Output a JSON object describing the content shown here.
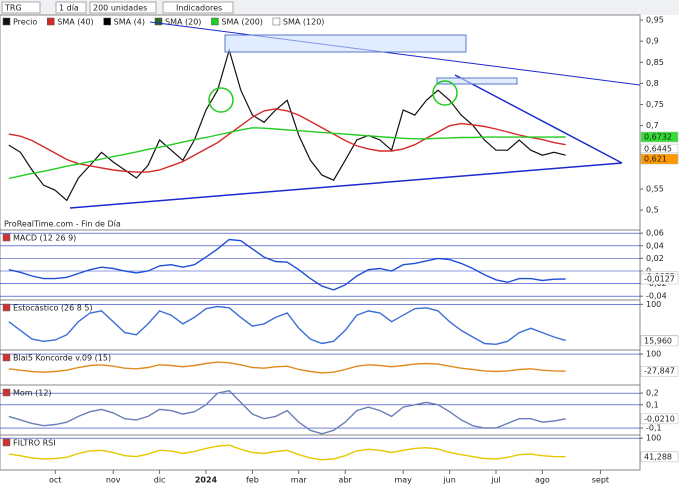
{
  "toolbar": {
    "symbol": "TRG",
    "period": "1 día",
    "units": "200 unidades",
    "menu": "Indicadores"
  },
  "chart_data": [
    {
      "type": "line",
      "annotation": "ProRealTime.com - Fin de Día",
      "categories": [
        null,
        null,
        null,
        null,
        "oct",
        null,
        null,
        null,
        null,
        "nov",
        null,
        null,
        null,
        "dic",
        null,
        null,
        null,
        "2024",
        null,
        null,
        null,
        "feb",
        null,
        null,
        null,
        "mar",
        null,
        null,
        null,
        "abr",
        null,
        null,
        null,
        null,
        "may",
        null,
        null,
        null,
        "jun",
        null,
        null,
        null,
        "jul",
        null,
        null,
        null,
        "ago",
        null,
        null,
        null,
        null,
        "sept",
        null,
        null,
        null
      ],
      "series": [
        {
          "name": "Precio",
          "color": "#111111",
          "values": [
            0.654,
            0.637,
            0.595,
            0.559,
            0.547,
            0.523,
            0.576,
            0.606,
            0.637,
            0.614,
            0.595,
            0.576,
            0.606,
            0.666,
            0.642,
            0.618,
            0.666,
            0.737,
            0.784,
            0.879,
            0.784,
            0.725,
            0.708,
            0.737,
            0.76,
            0.677,
            0.618,
            0.583,
            0.571,
            0.618,
            0.666,
            0.677,
            0.666,
            0.642,
            0.737,
            0.725,
            0.76,
            0.784,
            0.76,
            0.725,
            0.701,
            0.666,
            0.642,
            0.642,
            0.666,
            0.642,
            0.63,
            0.637,
            0.63,
            null,
            null,
            null,
            null,
            null,
            null
          ]
        },
        {
          "name": "SMA (40)",
          "color": "#d42a2a",
          "values": [
            0.68,
            0.675,
            0.665,
            0.65,
            0.635,
            0.62,
            0.61,
            0.605,
            0.6,
            0.595,
            0.592,
            0.59,
            0.59,
            0.595,
            0.605,
            0.615,
            0.63,
            0.645,
            0.66,
            0.68,
            0.7,
            0.72,
            0.735,
            0.74,
            0.735,
            0.725,
            0.71,
            0.695,
            0.68,
            0.665,
            0.652,
            0.645,
            0.64,
            0.64,
            0.645,
            0.655,
            0.67,
            0.685,
            0.7,
            0.705,
            0.702,
            0.698,
            0.692,
            0.685,
            0.678,
            0.672,
            0.667,
            0.66,
            0.655,
            null,
            null,
            null,
            null,
            null,
            null
          ]
        },
        {
          "name": "SMA (200)",
          "color": "#22cc22",
          "values": [
            0.575,
            0.581,
            0.587,
            0.592,
            0.598,
            0.604,
            0.609,
            0.615,
            0.621,
            0.627,
            0.632,
            0.638,
            0.644,
            0.649,
            0.655,
            0.661,
            0.667,
            0.672,
            0.678,
            0.684,
            0.69,
            0.695,
            0.694,
            0.692,
            0.69,
            0.688,
            0.686,
            0.684,
            0.682,
            0.68,
            0.678,
            0.676,
            0.674,
            0.672,
            0.67,
            0.669,
            0.669,
            0.67,
            0.671,
            0.672,
            0.672,
            0.673,
            0.673,
            0.673,
            0.673,
            0.673,
            0.673,
            0.673,
            0.6732,
            null,
            null,
            null,
            null,
            null,
            null
          ]
        }
      ],
      "legend_extra": [
        {
          "name": "SMA (4)",
          "color": "#000000"
        },
        {
          "name": "SMA (20)",
          "color": "#2e6b1a"
        },
        {
          "name": "SMA (120)",
          "color": "#ffffff"
        }
      ],
      "ylim": [
        0.453,
        0.962
      ],
      "yticks": [
        {
          "value": 0.95,
          "label": "0,95"
        },
        {
          "value": 0.9,
          "label": "0,9"
        },
        {
          "value": 0.85,
          "label": "0,85"
        },
        {
          "value": 0.8,
          "label": "0,8"
        },
        {
          "value": 0.75,
          "label": "0,75"
        },
        {
          "value": 0.7,
          "label": "0,7"
        },
        {
          "value": 0.55,
          "label": "0,55"
        },
        {
          "value": 0.5,
          "label": "0,5"
        }
      ],
      "tags": [
        {
          "value": 0.6732,
          "label": "0,6732",
          "color": "#000000",
          "background": "#33dd33"
        },
        {
          "value": 0.6445,
          "label": "0,6445",
          "color": "#000000",
          "background": "#ffffff"
        },
        {
          "value": 0.6252,
          "label": "0,6252",
          "color": "#000000",
          "background": "#ffffff"
        },
        {
          "value": 0.621,
          "label": "0,621",
          "color": "#000000",
          "background": "#ff9900"
        }
      ]
    },
    {
      "type": "line",
      "title": "MACD (12 26 9)",
      "ylim": [
        -0.046,
        0.065
      ],
      "yticks": [
        {
          "value": 0.06,
          "label": "0,06"
        },
        {
          "value": 0.04,
          "label": "0,04"
        },
        {
          "value": 0.02,
          "label": "0,02"
        },
        0,
        {
          "value": -0.02,
          "label": "-0,02"
        },
        {
          "value": -0.04,
          "label": "-0,04"
        }
      ],
      "series": [
        {
          "name": "MACD",
          "color": "#1f4fd6",
          "values": [
            0.002,
            -0.002,
            -0.008,
            -0.012,
            -0.012,
            -0.01,
            -0.004,
            0.002,
            0.006,
            0.004,
            0.0,
            -0.003,
            0.0,
            0.008,
            0.01,
            0.006,
            0.01,
            0.022,
            0.035,
            0.05,
            0.048,
            0.035,
            0.022,
            0.015,
            0.014,
            0.002,
            -0.012,
            -0.024,
            -0.03,
            -0.022,
            -0.008,
            0.002,
            0.004,
            0.0,
            0.01,
            0.012,
            0.016,
            0.02,
            0.018,
            0.012,
            0.004,
            -0.006,
            -0.014,
            -0.018,
            -0.012,
            -0.012,
            -0.015,
            -0.013,
            -0.0127,
            null,
            null,
            null,
            null,
            null,
            null
          ]
        }
      ],
      "tags": [
        {
          "value": -0.0085,
          "label": "-0,0085",
          "color": "#d42a2a",
          "background": "#ffffff"
        },
        {
          "value": -0.0127,
          "label": "-0,0127",
          "color": "#1f4fd6",
          "background": "#ffffff"
        }
      ]
    },
    {
      "type": "line",
      "title": "Estocástico (26 8 5)",
      "ylim": [
        -5,
        110
      ],
      "yticks": [
        100
      ],
      "series": [
        {
          "name": "%K",
          "color": "#3a6fd8",
          "values": [
            60,
            40,
            20,
            15,
            18,
            30,
            60,
            80,
            85,
            60,
            35,
            30,
            55,
            85,
            75,
            55,
            70,
            90,
            95,
            92,
            70,
            50,
            55,
            70,
            80,
            45,
            20,
            10,
            15,
            40,
            75,
            85,
            80,
            60,
            75,
            90,
            92,
            85,
            60,
            40,
            25,
            10,
            8,
            15,
            35,
            45,
            35,
            25,
            17.14,
            null,
            null,
            null,
            null,
            null,
            null
          ]
        }
      ],
      "tags": [
        {
          "value": 17.14,
          "label": "17,140",
          "color": "#d42a2a",
          "background": "#ffffff"
        },
        {
          "value": 15.96,
          "label": "15,960",
          "color": "#1f4fd6",
          "background": "#ffffff"
        }
      ]
    },
    {
      "type": "line",
      "title": "Blai5 Koncorde v.09 (15)",
      "ylim": [
        -130,
        130
      ],
      "yticks": [
        100
      ],
      "series": [
        {
          "name": "Koncorde",
          "color": "#e08a20",
          "values": [
            -10,
            -20,
            -30,
            -35,
            -30,
            -20,
            0,
            15,
            20,
            10,
            -5,
            -10,
            0,
            20,
            15,
            5,
            15,
            30,
            40,
            35,
            20,
            0,
            -5,
            5,
            10,
            -15,
            -30,
            -40,
            -35,
            -15,
            10,
            20,
            15,
            5,
            15,
            25,
            30,
            25,
            10,
            -5,
            -15,
            -25,
            -30,
            -25,
            -15,
            -10,
            -20,
            -25,
            -27.847,
            null,
            null,
            null,
            null,
            null,
            null
          ]
        }
      ],
      "tags": [
        {
          "value": -27.847,
          "label": "-27,847",
          "color": "#1f4fd6",
          "background": "#ffffff"
        }
      ]
    },
    {
      "type": "line",
      "title": "Mom (12)",
      "ylim": [
        -0.16,
        0.27
      ],
      "yticks": [
        {
          "value": 0.2,
          "label": "0,2"
        },
        {
          "value": 0.1,
          "label": "0,1"
        },
        {
          "value": -0.1,
          "label": "-0,1"
        }
      ],
      "series": [
        {
          "name": "Mom",
          "color": "#6b7fb8",
          "values": [
            0.0,
            -0.03,
            -0.06,
            -0.08,
            -0.07,
            -0.05,
            0.0,
            0.04,
            0.06,
            0.03,
            -0.02,
            -0.03,
            0.0,
            0.06,
            0.05,
            0.02,
            0.04,
            0.1,
            0.2,
            0.22,
            0.12,
            0.02,
            -0.02,
            0.0,
            0.05,
            -0.05,
            -0.12,
            -0.15,
            -0.12,
            -0.05,
            0.05,
            0.08,
            0.05,
            0.0,
            0.08,
            0.1,
            0.12,
            0.1,
            0.04,
            -0.03,
            -0.08,
            -0.1,
            -0.1,
            -0.06,
            -0.02,
            -0.02,
            -0.05,
            -0.04,
            -0.021,
            null,
            null,
            null,
            null,
            null,
            null
          ]
        }
      ],
      "tags": [
        {
          "value": -0.021,
          "label": "-0,0210",
          "color": "#000000",
          "background": "#ffffff"
        }
      ]
    },
    {
      "type": "line",
      "title": "FILTRO RSI",
      "ylim": [
        0,
        110
      ],
      "yticks": [
        100
      ],
      "series": [
        {
          "name": "RSI",
          "color": "#e6c800",
          "values": [
            50,
            45,
            38,
            35,
            36,
            40,
            52,
            60,
            62,
            55,
            45,
            42,
            50,
            62,
            60,
            52,
            58,
            68,
            75,
            78,
            65,
            55,
            52,
            58,
            62,
            48,
            38,
            32,
            35,
            45,
            60,
            65,
            62,
            55,
            62,
            68,
            70,
            66,
            55,
            48,
            42,
            36,
            35,
            40,
            48,
            50,
            45,
            42,
            41.82,
            null,
            null,
            null,
            null,
            null,
            null
          ]
        }
      ],
      "tags": [
        {
          "value": 41.82,
          "label": "41,820",
          "color": "#000000",
          "background": "#ffee33"
        },
        {
          "value": 41.288,
          "label": "41,288",
          "color": "#d42a2a",
          "background": "#ffffff"
        }
      ]
    }
  ]
}
